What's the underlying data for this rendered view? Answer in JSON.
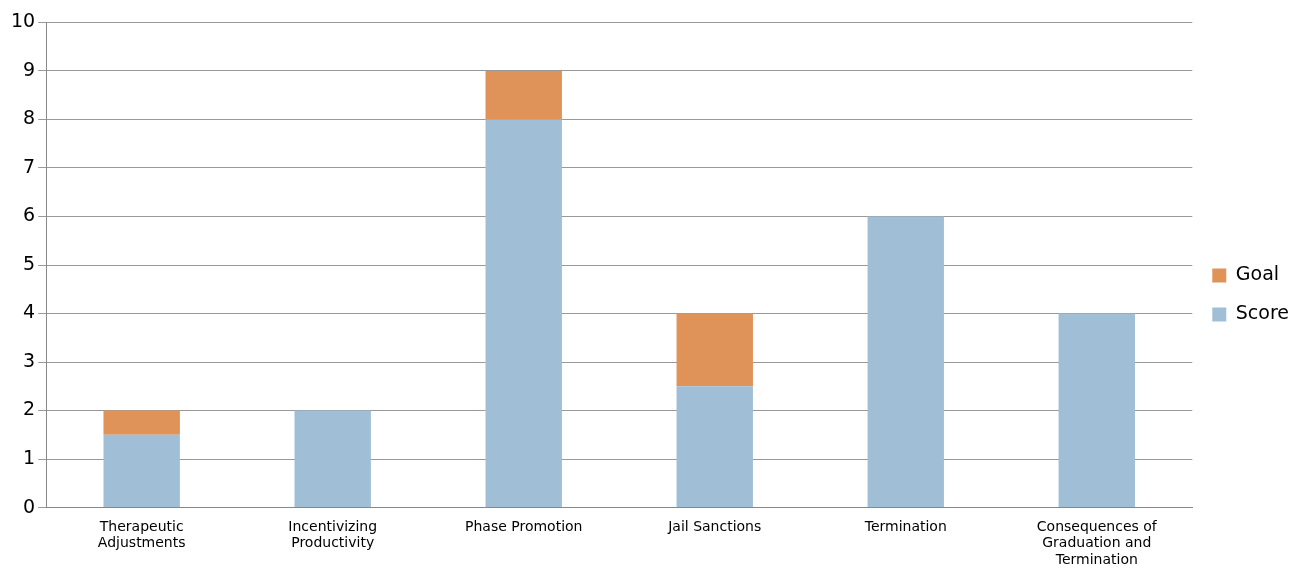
{
  "chart_data": {
    "type": "bar",
    "stacked": true,
    "categories": [
      "Therapeutic Adjustments",
      "Incentivizing Productivity",
      "Phase Promotion",
      "Jail Sanctions",
      "Termination",
      "Consequences of Graduation and Termination"
    ],
    "series": [
      {
        "name": "Score",
        "color": "#a0bfd6",
        "values": [
          1.5,
          2,
          8,
          2.5,
          6,
          4
        ]
      },
      {
        "name": "Goal",
        "color": "#e09358",
        "values": [
          0.5,
          0,
          1,
          1.5,
          0,
          0
        ]
      }
    ],
    "ylim": [
      0,
      10
    ],
    "yticks": [
      0,
      1,
      2,
      3,
      4,
      5,
      6,
      7,
      8,
      9,
      10
    ],
    "grid": "y",
    "legend": "right"
  }
}
